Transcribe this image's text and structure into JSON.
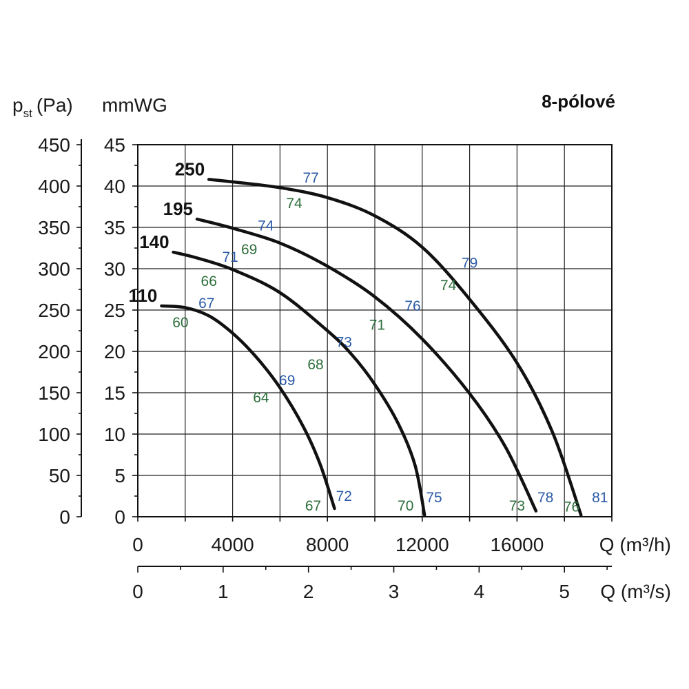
{
  "chart_data": {
    "type": "line",
    "title": "8-pólové",
    "y_pa_label": "p",
    "y_pa_label_sub": "st",
    "y_pa_label_unit": "(Pa)",
    "y_mm_label": "mmWG",
    "x_h_label": "Q (m³/h)",
    "x_s_label": "Q (m³/s)",
    "ylim_mm": [
      0,
      45
    ],
    "ylim_pa": [
      0,
      450
    ],
    "xlim_h": [
      0,
      20000
    ],
    "grid": true,
    "y_pa_ticks": [
      "450",
      "400",
      "350",
      "300",
      "250",
      "200",
      "150",
      "100",
      "50",
      "0"
    ],
    "y_pa_tick_values": [
      450,
      400,
      350,
      300,
      250,
      200,
      150,
      100,
      50,
      0
    ],
    "y_mm_ticks": [
      "45",
      "40",
      "35",
      "30",
      "25",
      "20",
      "15",
      "10",
      "5",
      "0"
    ],
    "y_mm_tick_values": [
      45,
      40,
      35,
      30,
      25,
      20,
      15,
      10,
      5,
      0
    ],
    "x_h_ticks": [
      "0",
      "4000",
      "8000",
      "12000",
      "16000"
    ],
    "x_h_tick_values": [
      0,
      4000,
      8000,
      12000,
      16000
    ],
    "x_s_ticks": [
      "0",
      "1",
      "2",
      "3",
      "4",
      "5"
    ],
    "x_s_tick_values": [
      0,
      1,
      2,
      3,
      4,
      5
    ],
    "series": [
      {
        "name": "110",
        "points": [
          [
            1000,
            25.5
          ],
          [
            2000,
            25.3
          ],
          [
            3000,
            24.3
          ],
          [
            4000,
            22.2
          ],
          [
            5000,
            19.3
          ],
          [
            6000,
            15.6
          ],
          [
            7000,
            10.8
          ],
          [
            7700,
            6.3
          ],
          [
            8300,
            1.0
          ]
        ]
      },
      {
        "name": "140",
        "points": [
          [
            1500,
            32.0
          ],
          [
            2500,
            31.3
          ],
          [
            4000,
            29.9
          ],
          [
            6000,
            27.1
          ],
          [
            8000,
            22.5
          ],
          [
            9000,
            19.7
          ],
          [
            10000,
            16.0
          ],
          [
            11000,
            11.2
          ],
          [
            11700,
            6.2
          ],
          [
            12100,
            0.2
          ]
        ]
      },
      {
        "name": "195",
        "points": [
          [
            2500,
            36.0
          ],
          [
            4000,
            34.9
          ],
          [
            6000,
            33.1
          ],
          [
            8000,
            30.3
          ],
          [
            10000,
            26.6
          ],
          [
            12000,
            21.5
          ],
          [
            14000,
            14.9
          ],
          [
            15500,
            8.5
          ],
          [
            16800,
            0.7
          ]
        ]
      },
      {
        "name": "250",
        "points": [
          [
            3000,
            40.8
          ],
          [
            4000,
            40.5
          ],
          [
            6000,
            39.8
          ],
          [
            8000,
            38.6
          ],
          [
            10000,
            36.4
          ],
          [
            12000,
            32.6
          ],
          [
            14000,
            26.3
          ],
          [
            16000,
            18.6
          ],
          [
            17500,
            10.2
          ],
          [
            18700,
            0.2
          ]
        ]
      }
    ],
    "efficiency_labels": [
      {
        "text": "77",
        "color": "#2b5aa6",
        "x": 7300,
        "y": 41.1
      },
      {
        "text": "74",
        "color": "#2d6e3c",
        "x": 6600,
        "y": 38.0
      },
      {
        "text": "74",
        "color": "#2b5aa6",
        "x": 5400,
        "y": 35.3
      },
      {
        "text": "69",
        "color": "#2d6e3c",
        "x": 4700,
        "y": 32.4
      },
      {
        "text": "71",
        "color": "#2b5aa6",
        "x": 3900,
        "y": 31.5
      },
      {
        "text": "79",
        "color": "#2b5aa6",
        "x": 14000,
        "y": 30.8
      },
      {
        "text": "66",
        "color": "#2d6e3c",
        "x": 3000,
        "y": 28.6
      },
      {
        "text": "74",
        "color": "#2d6e3c",
        "x": 13100,
        "y": 28.1
      },
      {
        "text": "67",
        "color": "#2b5aa6",
        "x": 2900,
        "y": 25.9
      },
      {
        "text": "76",
        "color": "#2b5aa6",
        "x": 11600,
        "y": 25.6
      },
      {
        "text": "60",
        "color": "#2d6e3c",
        "x": 1800,
        "y": 23.6
      },
      {
        "text": "71",
        "color": "#2d6e3c",
        "x": 10100,
        "y": 23.3
      },
      {
        "text": "73",
        "color": "#2b5aa6",
        "x": 8700,
        "y": 21.2
      },
      {
        "text": "68",
        "color": "#2d6e3c",
        "x": 7500,
        "y": 18.5
      },
      {
        "text": "69",
        "color": "#2b5aa6",
        "x": 6300,
        "y": 16.6
      },
      {
        "text": "64",
        "color": "#2d6e3c",
        "x": 5200,
        "y": 14.5
      },
      {
        "text": "72",
        "color": "#2b5aa6",
        "x": 8700,
        "y": 2.6
      },
      {
        "text": "67",
        "color": "#2d6e3c",
        "x": 7400,
        "y": 1.4
      },
      {
        "text": "75",
        "color": "#2b5aa6",
        "x": 12500,
        "y": 2.4
      },
      {
        "text": "70",
        "color": "#2d6e3c",
        "x": 11300,
        "y": 1.4
      },
      {
        "text": "78",
        "color": "#2b5aa6",
        "x": 17200,
        "y": 2.4
      },
      {
        "text": "73",
        "color": "#2d6e3c",
        "x": 16000,
        "y": 1.4
      },
      {
        "text": "81",
        "color": "#2b5aa6",
        "x": 19500,
        "y": 2.4
      },
      {
        "text": "76",
        "color": "#2d6e3c",
        "x": 18300,
        "y": 1.3
      }
    ]
  }
}
